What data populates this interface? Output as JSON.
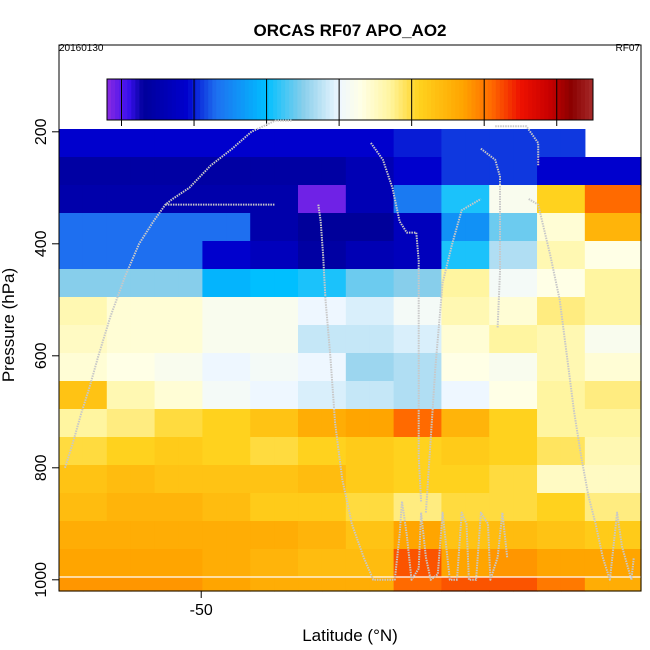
{
  "chart_data": {
    "type": "heatmap",
    "title": "ORCAS RF07 APO_AO2",
    "date_label": "20160130",
    "flight_label": "RF07",
    "xlabel": "Latitude (°N)",
    "ylabel": "Pressure (hPa)",
    "xlim": [
      -55.95,
      -31.6
    ],
    "ylim": [
      1020,
      45
    ],
    "x_ticks": [
      -50
    ],
    "y_ticks": [
      200,
      400,
      600,
      800,
      1000
    ],
    "colorbar": {
      "range": [
        -332,
        -265
      ],
      "ticks": [
        -330,
        -320,
        -310,
        -300,
        -290,
        -280,
        -270
      ],
      "stops": [
        {
          "v": -332,
          "c": "#8a2be2"
        },
        {
          "v": -329,
          "c": "#3a10ee"
        },
        {
          "v": -327,
          "c": "#00009a"
        },
        {
          "v": -321,
          "c": "#0000cd"
        },
        {
          "v": -317,
          "c": "#1e6ff0"
        },
        {
          "v": -310,
          "c": "#00bfff"
        },
        {
          "v": -305,
          "c": "#87ceeb"
        },
        {
          "v": -300,
          "c": "#eef7ff"
        },
        {
          "v": -297,
          "c": "#ffffe6"
        },
        {
          "v": -293,
          "c": "#fff5a0"
        },
        {
          "v": -289,
          "c": "#ffd21e"
        },
        {
          "v": -283,
          "c": "#ffa500"
        },
        {
          "v": -279,
          "c": "#ff6a00"
        },
        {
          "v": -275,
          "c": "#ee1100"
        },
        {
          "v": -271,
          "c": "#c80000"
        },
        {
          "v": -268,
          "c": "#8b0000"
        },
        {
          "v": -265,
          "c": "#a52a2a"
        }
      ]
    },
    "x_edges": [
      -55.95,
      -54.95,
      -53.95,
      -52.95,
      -51.95,
      -50.95,
      -49.95,
      -48.95,
      -47.95,
      -46.95,
      -45.95,
      -44.95,
      -43.95,
      -42.95,
      -41.95,
      -40.95,
      -39.95,
      -38.95,
      -37.95,
      -36.95,
      -35.95,
      -34.95,
      -33.95,
      -32.95,
      -31.6
    ],
    "y_edges": [
      45,
      95,
      145,
      195,
      245,
      295,
      345,
      395,
      445,
      495,
      545,
      595,
      645,
      695,
      745,
      795,
      845,
      895,
      945,
      995,
      1020
    ],
    "values": [
      [
        null,
        null,
        null,
        null,
        null,
        null,
        null,
        null,
        null,
        null,
        null,
        null,
        null,
        null,
        null,
        null,
        null,
        null,
        null,
        null,
        null,
        null,
        null,
        null
      ],
      [
        null,
        null,
        null,
        null,
        null,
        null,
        null,
        null,
        null,
        null,
        null,
        null,
        null,
        null,
        null,
        null,
        null,
        null,
        null,
        null,
        null,
        null,
        null,
        null
      ],
      [
        null,
        null,
        null,
        null,
        null,
        null,
        null,
        null,
        null,
        null,
        null,
        null,
        null,
        null,
        null,
        null,
        null,
        null,
        null,
        null,
        null,
        null,
        null,
        null
      ],
      [
        -321,
        -321,
        -321,
        -321,
        -321,
        -321,
        -321,
        -321,
        -321,
        -321,
        -321,
        -321,
        -321,
        -321,
        -320,
        -320,
        -319,
        -319,
        -319,
        -319,
        -319,
        -319,
        null,
        null
      ],
      [
        -326,
        -326,
        -326,
        -326,
        -326,
        -326,
        -326,
        -326,
        -326,
        -326,
        -326,
        -326,
        -324,
        -324,
        -321,
        -321,
        -319,
        -319,
        -319,
        -319,
        -321,
        -321,
        -321,
        -321
      ],
      [
        -325,
        -325,
        -325,
        -325,
        -325,
        -325,
        -325,
        -325,
        -325,
        -325,
        -331,
        -331,
        -324,
        -324,
        -316,
        -316,
        -309,
        -309,
        -298,
        -298,
        -289,
        -289,
        -279,
        -279
      ],
      [
        -317,
        -317,
        -317,
        -317,
        -317,
        -317,
        -317,
        -317,
        -325,
        -325,
        -327,
        -327,
        -327,
        -327,
        -323,
        -323,
        -314,
        -314,
        -306,
        -306,
        -296,
        -296,
        -285,
        -285
      ],
      [
        -317,
        -317,
        -317,
        -317,
        -317,
        -317,
        -321,
        -321,
        -323,
        -323,
        -326,
        -326,
        -324,
        -324,
        -323,
        -323,
        -309,
        -309,
        -303,
        -303,
        -294,
        -294,
        -297,
        -297
      ],
      [
        -305,
        -305,
        -305,
        -305,
        -305,
        -305,
        -311,
        -311,
        -310,
        -310,
        -309,
        -309,
        -306,
        -306,
        -305,
        -305,
        -293,
        -293,
        -299,
        -299,
        -297,
        -297,
        -293,
        -293
      ],
      [
        -294,
        -294,
        -296,
        -296,
        -296,
        -296,
        -298,
        -298,
        -298,
        -298,
        -300,
        -300,
        -301,
        -301,
        -299,
        -299,
        -294,
        -294,
        -296,
        -296,
        -292,
        -292,
        -293,
        -293
      ],
      [
        -295,
        -295,
        -296,
        -296,
        -296,
        -296,
        -298,
        -298,
        -298,
        -298,
        -302,
        -302,
        -302,
        -302,
        -301,
        -301,
        -296,
        -296,
        -293,
        -293,
        -294,
        -294,
        -298,
        -298
      ],
      [
        -296,
        -296,
        -297,
        -297,
        -298,
        -298,
        -300,
        -300,
        -299,
        -299,
        -300,
        -300,
        -304,
        -304,
        -303,
        -303,
        -297,
        -297,
        -298,
        -298,
        -294,
        -294,
        -296,
        -296
      ],
      [
        -287,
        -287,
        -294,
        -294,
        -296,
        -296,
        -299,
        -299,
        -300,
        -300,
        -301,
        -301,
        -302,
        -302,
        -303,
        -303,
        -300,
        -300,
        -297,
        -297,
        -293,
        -293,
        -292,
        -292
      ],
      [
        -293,
        -293,
        -292,
        -292,
        -290,
        -290,
        -289,
        -289,
        -287,
        -287,
        -284,
        -284,
        -283,
        -283,
        -279,
        -279,
        -285,
        -285,
        -289,
        -289,
        -293,
        -293,
        -293,
        -293
      ],
      [
        -290,
        -290,
        -289,
        -289,
        -288,
        -288,
        -289,
        -289,
        -290,
        -290,
        -289,
        -289,
        -288,
        -288,
        -289,
        -289,
        -288,
        -288,
        -289,
        -289,
        -291,
        -291,
        -294,
        -294
      ],
      [
        -287,
        -287,
        -286,
        -286,
        -287,
        -287,
        -287,
        -287,
        -287,
        -287,
        -286,
        -286,
        -288,
        -288,
        -289,
        -289,
        -289,
        -289,
        -290,
        -290,
        -295,
        -295,
        -295,
        -295
      ],
      [
        -286,
        -286,
        -285,
        -285,
        -285,
        -285,
        -286,
        -286,
        -288,
        -288,
        -288,
        -288,
        -290,
        -290,
        -292,
        -292,
        -290,
        -290,
        -290,
        -290,
        -289,
        -289,
        -292,
        -292
      ],
      [
        -284,
        -284,
        -284,
        -284,
        -284,
        -284,
        -284,
        -284,
        -284,
        -284,
        -285,
        -285,
        -287,
        -287,
        -283,
        -283,
        -287,
        -287,
        -286,
        -286,
        -287,
        -287,
        -288,
        -288
      ],
      [
        -283,
        -283,
        -283,
        -283,
        -283,
        -283,
        -284,
        -284,
        -285,
        -285,
        -286,
        -286,
        -286,
        -286,
        -278,
        -278,
        -283,
        -283,
        -282,
        -282,
        -283,
        -283,
        -283,
        -283
      ],
      [
        -282,
        -282,
        -282,
        -282,
        -282,
        -282,
        -283,
        -283,
        -284,
        -284,
        -284,
        -284,
        -284,
        -284,
        -279,
        -279,
        -278,
        -278,
        -278,
        -278,
        -280,
        -280,
        -284,
        -284
      ],
      [
        -275,
        -275,
        -275,
        -275,
        -275,
        -275,
        -275,
        -275,
        -275,
        -275,
        -275,
        -275,
        -275,
        -275,
        -270,
        -270,
        -269,
        -269,
        -269,
        -269,
        -272,
        -272,
        -272,
        -272
      ]
    ],
    "flight_track_note": "grey dotted line shows aircraft flight track (latitude vs pressure)",
    "track_color": "#c8c8c8",
    "track": [
      [
        -55.7,
        800
      ],
      [
        -55.4,
        760
      ],
      [
        -55.0,
        700
      ],
      [
        -54.7,
        660
      ],
      [
        -54.3,
        600
      ],
      [
        -53.8,
        530
      ],
      [
        -53.2,
        460
      ],
      [
        -52.6,
        400
      ],
      [
        -52.0,
        360
      ],
      [
        -51.5,
        330
      ],
      [
        -51.2,
        320
      ],
      [
        -50.5,
        300
      ],
      [
        -49.6,
        260
      ],
      [
        -48.7,
        230
      ],
      [
        -47.9,
        200
      ],
      [
        -46.9,
        180
      ],
      [
        -46.2,
        180
      ],
      [
        -51.5,
        330
      ],
      [
        -49.0,
        330
      ],
      [
        -46.9,
        330
      ],
      [
        -45.1,
        330
      ],
      [
        -45.0,
        360
      ],
      [
        -44.9,
        420
      ],
      [
        -44.8,
        500
      ],
      [
        -44.6,
        600
      ],
      [
        -44.4,
        720
      ],
      [
        -44.1,
        820
      ],
      [
        -43.7,
        900
      ],
      [
        -43.2,
        960
      ],
      [
        -42.8,
        1000
      ],
      [
        -41.9,
        1000
      ],
      [
        -41.7,
        920
      ],
      [
        -41.6,
        860
      ],
      [
        -41.4,
        920
      ],
      [
        -41.2,
        1000
      ],
      [
        -40.9,
        980
      ],
      [
        -40.8,
        880
      ],
      [
        -40.6,
        960
      ],
      [
        -40.4,
        1000
      ],
      [
        -40.1,
        990
      ],
      [
        -39.9,
        880
      ],
      [
        -39.6,
        1000
      ],
      [
        -39.3,
        1000
      ],
      [
        -39.1,
        880
      ],
      [
        -38.9,
        900
      ],
      [
        -38.8,
        1000
      ],
      [
        -38.5,
        1000
      ],
      [
        -38.3,
        880
      ],
      [
        -38.0,
        900
      ],
      [
        -37.9,
        1000
      ],
      [
        -37.6,
        960
      ],
      [
        -37.4,
        880
      ],
      [
        -37.2,
        960
      ],
      [
        -42.9,
        220
      ],
      [
        -42.4,
        250
      ],
      [
        -42.0,
        300
      ],
      [
        -41.7,
        360
      ],
      [
        -41.4,
        380
      ],
      [
        -41.2,
        380
      ],
      [
        -41.0,
        380
      ],
      [
        -40.9,
        430
      ],
      [
        -40.9,
        500
      ],
      [
        -40.9,
        560
      ],
      [
        -40.9,
        620
      ],
      [
        -40.9,
        700
      ],
      [
        -40.9,
        780
      ],
      [
        -40.8,
        860
      ],
      [
        -40.6,
        880
      ],
      [
        -40.2,
        620
      ],
      [
        -39.9,
        470
      ],
      [
        -39.5,
        400
      ],
      [
        -39.1,
        340
      ],
      [
        -38.7,
        330
      ],
      [
        -38.3,
        320
      ],
      [
        -38.3,
        230
      ],
      [
        -38.0,
        240
      ],
      [
        -37.7,
        250
      ],
      [
        -37.5,
        280
      ],
      [
        -37.5,
        350
      ],
      [
        -37.5,
        450
      ],
      [
        -37.6,
        550
      ],
      [
        -37.7,
        190
      ],
      [
        -37.2,
        190
      ],
      [
        -36.6,
        190
      ],
      [
        -36.4,
        190
      ],
      [
        -35.9,
        220
      ],
      [
        -35.9,
        260
      ],
      [
        -36.3,
        320
      ],
      [
        -35.9,
        330
      ],
      [
        -35.4,
        420
      ],
      [
        -35.0,
        500
      ],
      [
        -34.7,
        600
      ],
      [
        -34.4,
        700
      ],
      [
        -34.1,
        780
      ],
      [
        -33.8,
        850
      ],
      [
        -33.5,
        900
      ],
      [
        -33.2,
        960
      ],
      [
        -32.9,
        1000
      ],
      [
        -32.6,
        880
      ],
      [
        -32.4,
        940
      ],
      [
        -32.0,
        1000
      ],
      [
        -31.9,
        960
      ]
    ]
  }
}
